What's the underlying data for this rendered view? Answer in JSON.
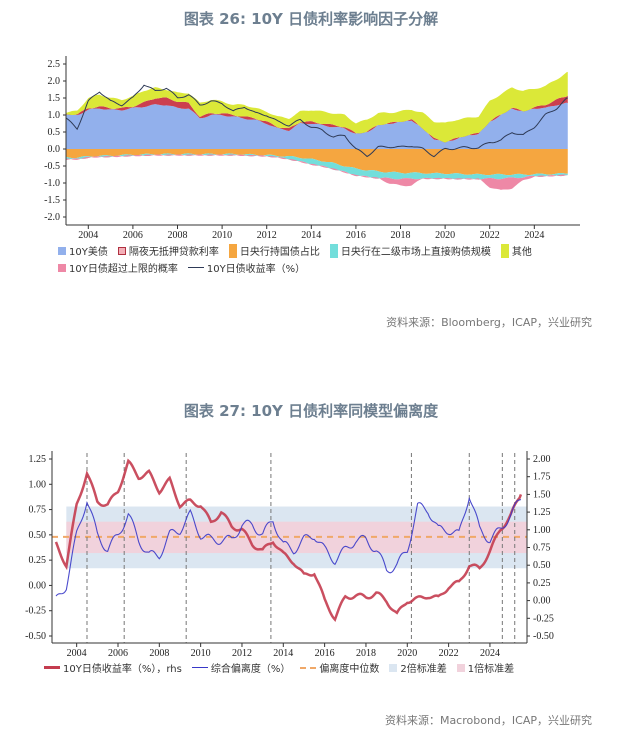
{
  "chart_data": [
    {
      "type": "area",
      "title": "图表 26: 10Y 日债利率影响因子分解",
      "source": "资料来源：Bloomberg，ICAP，兴业研究",
      "ylim": [
        -2.0,
        2.5
      ],
      "yticks": [
        2.5,
        2.0,
        1.5,
        1.0,
        0.5,
        0.0,
        -0.5,
        -1.0,
        -1.5,
        -2.0
      ],
      "xlim": [
        2003.0,
        2025.6
      ],
      "xticks": [
        2004,
        2006,
        2008,
        2010,
        2012,
        2014,
        2016,
        2018,
        2020,
        2022,
        2024
      ],
      "grid": false,
      "legend": "bottom",
      "x": [
        2003,
        2003.5,
        2004,
        2004.5,
        2005,
        2005.5,
        2006,
        2006.5,
        2007,
        2007.5,
        2008,
        2008.5,
        2009,
        2009.5,
        2010,
        2010.5,
        2011,
        2011.5,
        2012,
        2012.5,
        2013,
        2013.5,
        2014,
        2014.5,
        2015,
        2015.5,
        2016,
        2016.5,
        2017,
        2017.5,
        2018,
        2018.5,
        2019,
        2019.5,
        2020,
        2020.5,
        2021,
        2021.5,
        2022,
        2022.5,
        2023,
        2023.5,
        2024,
        2024.5,
        2025,
        2025.5
      ],
      "series": [
        {
          "name": "10Y美债",
          "kind": "area",
          "color": "#92b0ec",
          "values": [
            1.0,
            1.0,
            1.15,
            1.2,
            1.15,
            1.15,
            1.2,
            1.25,
            1.3,
            1.3,
            1.2,
            1.2,
            0.9,
            1.0,
            1.0,
            0.95,
            0.9,
            0.85,
            0.75,
            0.6,
            0.55,
            0.75,
            0.75,
            0.7,
            0.65,
            0.6,
            0.45,
            0.5,
            0.7,
            0.75,
            0.8,
            0.85,
            0.6,
            0.3,
            0.2,
            0.3,
            0.4,
            0.45,
            0.8,
            1.0,
            1.2,
            1.1,
            1.2,
            1.2,
            1.3,
            1.35
          ]
        },
        {
          "name": "隔夜无抵押贷款利率",
          "kind": "area",
          "color": "#cc3f4e",
          "values": [
            0.02,
            0.02,
            0.05,
            0.05,
            0.05,
            0.05,
            0.05,
            0.12,
            0.2,
            0.2,
            0.2,
            0.15,
            0.05,
            0.05,
            0.05,
            0.05,
            0.05,
            0.05,
            0.05,
            0.05,
            0.05,
            0.05,
            0.05,
            0.05,
            0.05,
            0.05,
            0.01,
            0.01,
            0.01,
            0.01,
            0.01,
            0.01,
            0.01,
            0.01,
            0.01,
            0.01,
            0.01,
            0.01,
            0.01,
            0.01,
            0.01,
            0.01,
            0.02,
            0.1,
            0.15,
            0.22
          ]
        },
        {
          "name": "其他",
          "kind": "area",
          "color": "#dbe838",
          "values": [
            0.05,
            0.1,
            0.3,
            0.35,
            0.3,
            0.25,
            0.3,
            0.35,
            0.3,
            0.25,
            0.25,
            0.3,
            0.4,
            0.4,
            0.35,
            0.3,
            0.35,
            0.3,
            0.3,
            0.3,
            0.3,
            0.3,
            0.35,
            0.35,
            0.35,
            0.35,
            0.3,
            0.35,
            0.35,
            0.3,
            0.3,
            0.3,
            0.45,
            0.5,
            0.55,
            0.55,
            0.5,
            0.5,
            0.6,
            0.6,
            0.6,
            0.6,
            0.55,
            0.55,
            0.6,
            0.7
          ]
        },
        {
          "name": "日央行持国债占比",
          "kind": "area",
          "color": "#f5a640",
          "values": [
            -0.25,
            -0.25,
            -0.22,
            -0.2,
            -0.2,
            -0.18,
            -0.17,
            -0.16,
            -0.15,
            -0.15,
            -0.15,
            -0.15,
            -0.15,
            -0.15,
            -0.15,
            -0.15,
            -0.16,
            -0.17,
            -0.18,
            -0.2,
            -0.22,
            -0.25,
            -0.3,
            -0.35,
            -0.42,
            -0.5,
            -0.58,
            -0.62,
            -0.66,
            -0.68,
            -0.7,
            -0.7,
            -0.71,
            -0.72,
            -0.72,
            -0.73,
            -0.74,
            -0.75,
            -0.75,
            -0.75,
            -0.75,
            -0.75,
            -0.74,
            -0.74,
            -0.73,
            -0.72
          ]
        },
        {
          "name": "日央行在二级市场上直接购债规模",
          "kind": "area",
          "color": "#73dedb",
          "values": [
            -0.05,
            -0.05,
            -0.03,
            -0.03,
            -0.03,
            -0.03,
            -0.03,
            -0.03,
            -0.03,
            -0.03,
            -0.03,
            -0.03,
            -0.03,
            -0.03,
            -0.03,
            -0.03,
            -0.03,
            -0.03,
            -0.03,
            -0.05,
            -0.08,
            -0.12,
            -0.15,
            -0.16,
            -0.17,
            -0.18,
            -0.2,
            -0.2,
            -0.2,
            -0.18,
            -0.18,
            -0.17,
            -0.16,
            -0.15,
            -0.15,
            -0.15,
            -0.14,
            -0.13,
            -0.12,
            -0.12,
            -0.1,
            -0.08,
            -0.06,
            -0.06,
            -0.05,
            -0.05
          ]
        },
        {
          "name": "10Y日债超过上限的概率",
          "kind": "area",
          "color": "#ee88a6",
          "values": [
            0,
            0,
            0,
            0,
            0,
            0,
            0,
            0,
            0,
            0,
            0,
            0,
            0,
            0,
            0,
            0,
            0,
            0,
            0,
            0,
            0,
            0,
            0,
            0,
            0,
            0,
            0,
            0,
            0,
            -0.15,
            -0.2,
            -0.2,
            0,
            0,
            0,
            0,
            0,
            0,
            -0.25,
            -0.35,
            -0.3,
            -0.1,
            0,
            0,
            0,
            0
          ]
        },
        {
          "name": "10Y日债收益率（%）",
          "kind": "line",
          "color": "#2e3a57",
          "values": [
            0.9,
            0.6,
            1.4,
            1.7,
            1.4,
            1.3,
            1.5,
            1.9,
            1.7,
            1.8,
            1.5,
            1.6,
            1.3,
            1.4,
            1.35,
            1.1,
            1.25,
            1.05,
            1.0,
            0.8,
            0.7,
            0.85,
            0.65,
            0.55,
            0.35,
            0.4,
            0.0,
            -0.2,
            0.05,
            0.07,
            0.05,
            0.1,
            0.0,
            -0.2,
            0.0,
            0.02,
            0.05,
            0.03,
            0.2,
            0.25,
            0.5,
            0.4,
            0.65,
            1.0,
            1.2,
            1.5
          ]
        }
      ]
    },
    {
      "type": "line",
      "title": "图表 27: 10Y 日债利率同模型偏离度",
      "source": "资料来源：Macrobond，ICAP，兴业研究",
      "ylim": [
        -0.5,
        1.25
      ],
      "yticks": [
        1.25,
        1.0,
        0.75,
        0.5,
        0.25,
        0.0,
        -0.25,
        -0.5
      ],
      "y2lim": [
        -0.5,
        2.0
      ],
      "y2ticks": [
        2.0,
        1.75,
        1.5,
        1.25,
        1.0,
        0.75,
        0.5,
        0.25,
        0.0,
        -0.25,
        -0.5
      ],
      "xlim": [
        2003.0,
        2025.6
      ],
      "xticks": [
        2004,
        2006,
        2008,
        2010,
        2012,
        2014,
        2016,
        2018,
        2020,
        2022,
        2024
      ],
      "grid": false,
      "legend": "bottom",
      "event_lines": [
        2004.5,
        2006.3,
        2009.3,
        2013.4,
        2020.2,
        2023.0,
        2024.6,
        2025.2
      ],
      "median": 0.48,
      "band_2sd": [
        0.17,
        0.78
      ],
      "band_1sd": [
        0.32,
        0.63
      ],
      "band_colors": {
        "2sd": "#dbe6f1",
        "1sd": "#f1d2dc",
        "median": "#f0a868"
      },
      "legend_labels": {
        "yield": "10Y日债收益率（%），rhs",
        "dev": "综合偏离度（%）",
        "median": "偏离度中位数",
        "sd2": "2倍标准差",
        "sd1": "1倍标准差"
      },
      "x": [
        2003,
        2003.5,
        2004,
        2004.5,
        2005,
        2005.5,
        2006,
        2006.5,
        2007,
        2007.5,
        2008,
        2008.5,
        2009,
        2009.5,
        2010,
        2010.5,
        2011,
        2011.5,
        2012,
        2012.5,
        2013,
        2013.5,
        2014,
        2014.5,
        2015,
        2015.5,
        2016,
        2016.5,
        2017,
        2017.5,
        2018,
        2018.5,
        2019,
        2019.5,
        2020,
        2020.5,
        2021,
        2021.5,
        2022,
        2022.5,
        2023,
        2023.5,
        2024,
        2024.5,
        2025,
        2025.5
      ],
      "series": [
        {
          "name": "10Y日债收益率（%），rhs",
          "axis": "right",
          "color": "#c43c4f",
          "values": [
            0.8,
            0.5,
            1.35,
            1.8,
            1.4,
            1.35,
            1.55,
            1.95,
            1.75,
            1.8,
            1.55,
            1.7,
            1.35,
            1.4,
            1.35,
            1.1,
            1.25,
            1.05,
            1.0,
            0.8,
            0.7,
            0.85,
            0.65,
            0.55,
            0.35,
            0.4,
            0.0,
            -0.25,
            0.05,
            0.07,
            0.05,
            0.1,
            0.0,
            -0.2,
            0.0,
            0.02,
            0.07,
            0.03,
            0.2,
            0.25,
            0.5,
            0.45,
            0.7,
            1.0,
            1.2,
            1.5
          ]
        },
        {
          "name": "综合偏离度（%）",
          "axis": "left",
          "color": "#3838c8",
          "values": [
            -0.15,
            0.0,
            0.5,
            0.85,
            0.5,
            0.35,
            0.5,
            0.7,
            0.45,
            0.3,
            0.3,
            0.5,
            0.55,
            0.7,
            0.5,
            0.45,
            0.45,
            0.45,
            0.6,
            0.6,
            0.5,
            0.65,
            0.4,
            0.35,
            0.45,
            0.5,
            0.35,
            0.25,
            0.35,
            0.45,
            0.45,
            0.35,
            0.15,
            0.2,
            0.35,
            0.78,
            0.75,
            0.55,
            0.55,
            0.5,
            0.9,
            0.55,
            0.45,
            0.55,
            0.7,
            0.85
          ]
        }
      ]
    }
  ]
}
